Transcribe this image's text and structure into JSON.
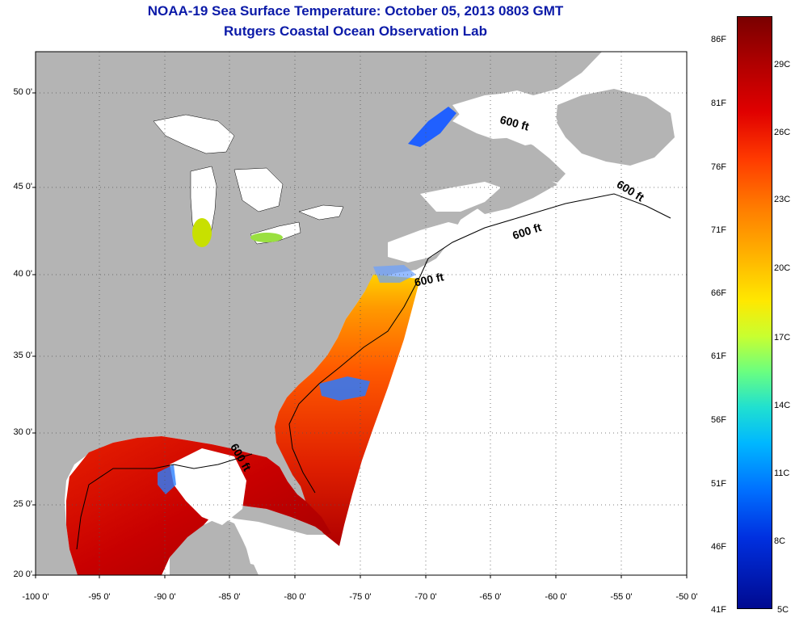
{
  "title": {
    "line1": "NOAA-19 Sea Surface Temperature:  October 05, 2013 0803 GMT",
    "line2": "Rutgers Coastal Ocean Observation Lab"
  },
  "map": {
    "y_axis_labels": [
      "50 0'",
      "45 0'",
      "40 0'",
      "35 0'",
      "30 0'",
      "25 0'",
      "20 0'"
    ],
    "x_axis_labels": [
      "-100 0'",
      "-95 0'",
      "-90 0'",
      "-85 0'",
      "-80 0'",
      "-75 0'",
      "-70 0'",
      "-65 0'",
      "-60 0'",
      "-55 0'",
      "-50 0'"
    ],
    "contour_labels": [
      "600 ft",
      "600 ft",
      "600 ft",
      "600 ft",
      "600 ft"
    ],
    "colors": {
      "land": "#b4b4b4",
      "ocean_missing": "#ffffff",
      "grid": "#000000"
    }
  },
  "colorbar": {
    "fahrenheit_labels": [
      "86F",
      "81F",
      "76F",
      "71F",
      "66F",
      "61F",
      "56F",
      "51F",
      "46F",
      "41F"
    ],
    "celsius_labels": [
      "29C",
      "26C",
      "23C",
      "20C",
      "17C",
      "14C",
      "11C",
      "8C",
      "5C"
    ]
  }
}
